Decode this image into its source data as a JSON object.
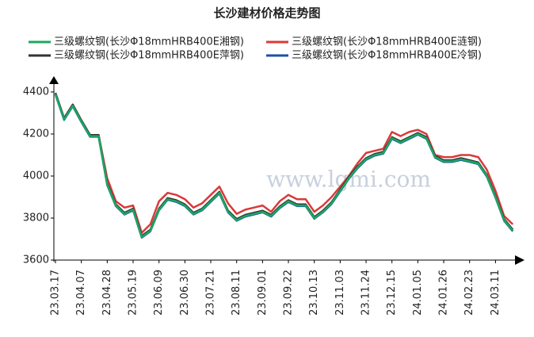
{
  "chart_data": {
    "type": "line",
    "title": "长沙建材价格走势图",
    "watermark": "www.lgmi.com",
    "categories": [
      "23.03.17",
      null,
      null,
      "23.04.07",
      null,
      null,
      "23.04.28",
      null,
      null,
      "23.05.19",
      null,
      null,
      "23.06.09",
      null,
      null,
      "23.06.30",
      null,
      null,
      "23.07.21",
      null,
      null,
      "23.08.11",
      null,
      null,
      "23.09.01",
      null,
      null,
      "23.09.22",
      null,
      null,
      "23.10.13",
      null,
      null,
      "23.11.03",
      null,
      null,
      "23.11.24",
      null,
      null,
      "23.12.15",
      null,
      null,
      "24.01.05",
      null,
      null,
      "24.01.26",
      null,
      null,
      "24.02.23",
      null,
      null,
      "24.03.11",
      null,
      null
    ],
    "series": [
      {
        "name": "三级螺纹钢(长沙Φ18mmHRB400E湘钢)",
        "color": "#1aa860",
        "values": [
          4390,
          4270,
          4335,
          4260,
          4190,
          4190,
          3960,
          3860,
          3820,
          3840,
          3710,
          3740,
          3840,
          3890,
          3880,
          3860,
          3820,
          3840,
          3880,
          3920,
          3830,
          3790,
          3810,
          3820,
          3830,
          3810,
          3850,
          3880,
          3860,
          3860,
          3800,
          3830,
          3870,
          3930,
          3990,
          4040,
          4080,
          4100,
          4110,
          4180,
          4160,
          4180,
          4200,
          4180,
          4090,
          4070,
          4070,
          4080,
          4070,
          4060,
          4000,
          3900,
          3790,
          3740
        ]
      },
      {
        "name": "三级螺纹钢(长沙Φ18mmHRB400E涟钢)",
        "color": "#d93a3a",
        "values": [
          4395,
          4275,
          4340,
          4265,
          4195,
          4195,
          3990,
          3880,
          3850,
          3860,
          3730,
          3770,
          3880,
          3920,
          3910,
          3890,
          3850,
          3870,
          3910,
          3950,
          3870,
          3820,
          3840,
          3850,
          3860,
          3830,
          3880,
          3910,
          3890,
          3890,
          3830,
          3860,
          3900,
          3950,
          4000,
          4060,
          4110,
          4120,
          4130,
          4210,
          4190,
          4210,
          4220,
          4200,
          4100,
          4090,
          4090,
          4100,
          4100,
          4090,
          4030,
          3930,
          3810,
          3770
        ]
      },
      {
        "name": "三级螺纹钢(长沙Φ18mmHRB400E萍钢)",
        "color": "#333333",
        "values": [
          4395,
          4275,
          4340,
          4265,
          4195,
          4195,
          3965,
          3865,
          3825,
          3845,
          3715,
          3745,
          3845,
          3895,
          3885,
          3865,
          3825,
          3845,
          3885,
          3925,
          3835,
          3795,
          3815,
          3825,
          3835,
          3815,
          3855,
          3885,
          3865,
          3865,
          3805,
          3835,
          3875,
          3935,
          3995,
          4045,
          4085,
          4105,
          4115,
          4185,
          4165,
          4185,
          4205,
          4185,
          4095,
          4075,
          4075,
          4085,
          4075,
          4065,
          4005,
          3905,
          3795,
          3745
        ]
      },
      {
        "name": "三级螺纹钢(长沙Φ18mmHRB400E冷钢)",
        "color": "#1f4fa8",
        "values": [
          4387,
          4267,
          4332,
          4257,
          4187,
          4187,
          3957,
          3857,
          3817,
          3837,
          3707,
          3737,
          3837,
          3887,
          3877,
          3857,
          3817,
          3837,
          3877,
          3917,
          3827,
          3787,
          3807,
          3817,
          3827,
          3807,
          3847,
          3877,
          3857,
          3857,
          3797,
          3827,
          3867,
          3927,
          3987,
          4037,
          4077,
          4097,
          4107,
          4177,
          4157,
          4177,
          4197,
          4177,
          4087,
          4067,
          4067,
          4077,
          4067,
          4057,
          3997,
          3897,
          3787,
          3737
        ]
      }
    ],
    "ylim": [
      3600,
      4400
    ],
    "yticks": [
      3600,
      3800,
      4000,
      4200,
      4400
    ],
    "grid": false
  }
}
